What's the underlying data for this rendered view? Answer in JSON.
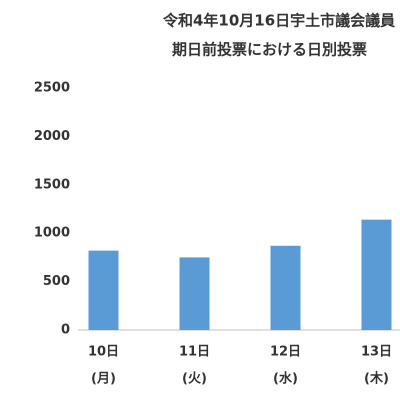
{
  "chart_data": {
    "type": "bar",
    "title": [
      "令和4年10月16日宇土市議会議員",
      "期日前投票における日別投票"
    ],
    "categories": [
      [
        "10日",
        "(月)"
      ],
      [
        "11日",
        "(火)"
      ],
      [
        "12日",
        "(水)"
      ],
      [
        "13日",
        "(木)"
      ]
    ],
    "values": [
      820,
      750,
      870,
      1140
    ],
    "color": "#5b9bd5",
    "ylim": [
      0,
      2500
    ],
    "yticks": [
      0,
      500,
      1000,
      1500,
      2000,
      2500
    ],
    "grid": false
  }
}
